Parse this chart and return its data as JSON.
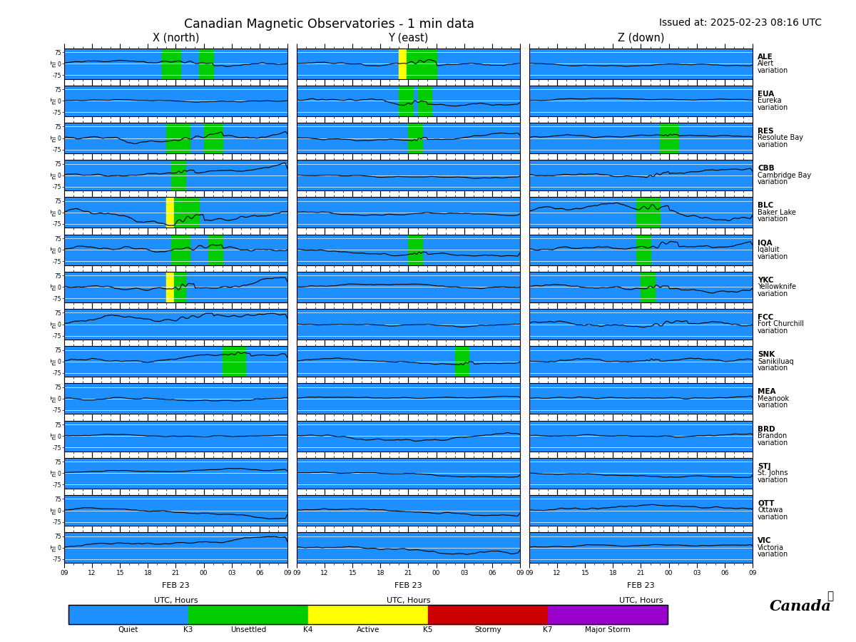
{
  "title": "Canadian Magnetic Observatories - 1 min data",
  "issued": "Issued at: 2025-02-23 08:16 UTC",
  "stations": [
    {
      "code": "ALE",
      "name": "Alert"
    },
    {
      "code": "EUA",
      "name": "Eureka"
    },
    {
      "code": "RES",
      "name": "Resolute Bay"
    },
    {
      "code": "CBB",
      "name": "Cambridge Bay"
    },
    {
      "code": "BLC",
      "name": "Baker Lake"
    },
    {
      "code": "IQA",
      "name": "Iqaluit"
    },
    {
      "code": "YKC",
      "name": "Yellowknife"
    },
    {
      "code": "FCC",
      "name": "Fort Churchill"
    },
    {
      "code": "SNK",
      "name": "Sanikiluaq"
    },
    {
      "code": "MEA",
      "name": "Meanook"
    },
    {
      "code": "BRD",
      "name": "Brandon"
    },
    {
      "code": "STJ",
      "name": "St. Johns"
    },
    {
      "code": "OTT",
      "name": "Ottawa"
    },
    {
      "code": "VIC",
      "name": "Victoria"
    }
  ],
  "components": [
    "X (north)",
    "Y (east)",
    "Z (down)"
  ],
  "bg_color": "#1E8FFF",
  "legend_colors": [
    "#1E8FFF",
    "#00CC00",
    "#FFFF00",
    "#CC0000",
    "#9900CC"
  ],
  "legend_labels": [
    "Quiet",
    "K3",
    "Unsettled",
    "K4",
    "Active",
    "K5",
    "Stormy",
    "K7",
    "Major Storm"
  ],
  "xtick_labels": [
    "09",
    "12",
    "15",
    "18",
    "21",
    "00",
    "03",
    "06",
    "09"
  ],
  "date_label": "FEB 23",
  "xlabel": "UTC, Hours"
}
